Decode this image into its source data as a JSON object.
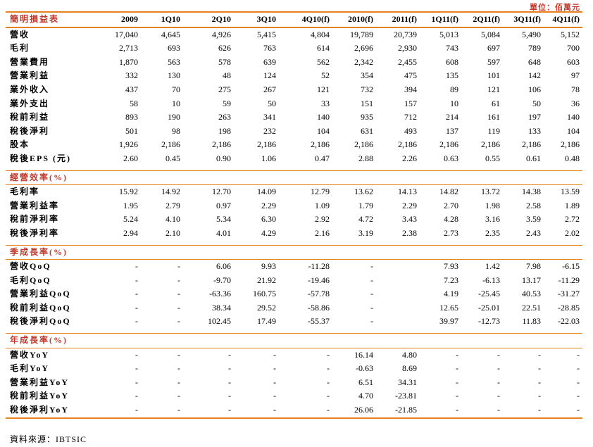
{
  "unit_note": "單位：佰萬元",
  "header": {
    "title": "簡明損益表",
    "periods": [
      "2009",
      "1Q10",
      "2Q10",
      "3Q10",
      "4Q10(f)",
      "2010(f)",
      "2011(f)",
      "1Q11(f)",
      "2Q11(f)",
      "3Q11(f)",
      "4Q11(f)"
    ]
  },
  "sections": [
    {
      "title": null,
      "rows": [
        {
          "label": "營收",
          "values": [
            "17,040",
            "4,645",
            "4,926",
            "5,415",
            "4,804",
            "19,789",
            "20,739",
            "5,013",
            "5,084",
            "5,490",
            "5,152"
          ]
        },
        {
          "label": "毛利",
          "values": [
            "2,713",
            "693",
            "626",
            "763",
            "614",
            "2,696",
            "2,930",
            "743",
            "697",
            "789",
            "700"
          ]
        },
        {
          "label": "營業費用",
          "values": [
            "1,870",
            "563",
            "578",
            "639",
            "562",
            "2,342",
            "2,455",
            "608",
            "597",
            "648",
            "603"
          ]
        },
        {
          "label": "營業利益",
          "values": [
            "332",
            "130",
            "48",
            "124",
            "52",
            "354",
            "475",
            "135",
            "101",
            "142",
            "97"
          ]
        },
        {
          "label": "業外收入",
          "values": [
            "437",
            "70",
            "275",
            "267",
            "121",
            "732",
            "394",
            "89",
            "121",
            "106",
            "78"
          ]
        },
        {
          "label": "業外支出",
          "values": [
            "58",
            "10",
            "59",
            "50",
            "33",
            "151",
            "157",
            "10",
            "61",
            "50",
            "36"
          ]
        },
        {
          "label": "稅前利益",
          "values": [
            "893",
            "190",
            "263",
            "341",
            "140",
            "935",
            "712",
            "214",
            "161",
            "197",
            "140"
          ]
        },
        {
          "label": "稅後淨利",
          "values": [
            "501",
            "98",
            "198",
            "232",
            "104",
            "631",
            "493",
            "137",
            "119",
            "133",
            "104"
          ]
        },
        {
          "label": "股本",
          "values": [
            "1,926",
            "2,186",
            "2,186",
            "2,186",
            "2,186",
            "2,186",
            "2,186",
            "2,186",
            "2,186",
            "2,186",
            "2,186"
          ]
        },
        {
          "label": "稅後EPS (元)",
          "values": [
            "2.60",
            "0.45",
            "0.90",
            "1.06",
            "0.47",
            "2.88",
            "2.26",
            "0.63",
            "0.55",
            "0.61",
            "0.48"
          ]
        }
      ]
    },
    {
      "title": "經營效率(%)",
      "rows": [
        {
          "label": "毛利率",
          "values": [
            "15.92",
            "14.92",
            "12.70",
            "14.09",
            "12.79",
            "13.62",
            "14.13",
            "14.82",
            "13.72",
            "14.38",
            "13.59"
          ]
        },
        {
          "label": "營業利益率",
          "values": [
            "1.95",
            "2.79",
            "0.97",
            "2.29",
            "1.09",
            "1.79",
            "2.29",
            "2.70",
            "1.98",
            "2.58",
            "1.89"
          ]
        },
        {
          "label": "稅前淨利率",
          "values": [
            "5.24",
            "4.10",
            "5.34",
            "6.30",
            "2.92",
            "4.72",
            "3.43",
            "4.28",
            "3.16",
            "3.59",
            "2.72"
          ]
        },
        {
          "label": "稅後淨利率",
          "values": [
            "2.94",
            "2.10",
            "4.01",
            "4.29",
            "2.16",
            "3.19",
            "2.38",
            "2.73",
            "2.35",
            "2.43",
            "2.02"
          ]
        }
      ]
    },
    {
      "title": "季成長率(%)",
      "rows": [
        {
          "label": "營收QoQ",
          "values": [
            "-",
            "-",
            "6.06",
            "9.93",
            "-11.28",
            "-",
            "",
            "7.93",
            "1.42",
            "7.98",
            "-6.15"
          ]
        },
        {
          "label": "毛利QoQ",
          "values": [
            "-",
            "-",
            "-9.70",
            "21.92",
            "-19.46",
            "-",
            "",
            "7.23",
            "-6.13",
            "13.17",
            "-11.29"
          ]
        },
        {
          "label": "營業利益QoQ",
          "values": [
            "-",
            "-",
            "-63.36",
            "160.75",
            "-57.78",
            "-",
            "",
            "4.19",
            "-25.45",
            "40.53",
            "-31.27"
          ]
        },
        {
          "label": "稅前利益QoQ",
          "values": [
            "-",
            "-",
            "38.34",
            "29.52",
            "-58.86",
            "-",
            "",
            "12.65",
            "-25.01",
            "22.51",
            "-28.85"
          ]
        },
        {
          "label": "稅後淨利QoQ",
          "values": [
            "-",
            "-",
            "102.45",
            "17.49",
            "-55.37",
            "-",
            "",
            "39.97",
            "-12.73",
            "11.83",
            "-22.03"
          ]
        }
      ]
    },
    {
      "title": "年成長率(%)",
      "rows": [
        {
          "label": "營收YoY",
          "values": [
            "-",
            "-",
            "-",
            "-",
            "-",
            "16.14",
            "4.80",
            "-",
            "-",
            "-",
            "-"
          ]
        },
        {
          "label": "毛利YoY",
          "values": [
            "-",
            "-",
            "-",
            "-",
            "-",
            "-0.63",
            "8.69",
            "-",
            "-",
            "-",
            "-"
          ]
        },
        {
          "label": "營業利益YoY",
          "values": [
            "-",
            "-",
            "-",
            "-",
            "-",
            "6.51",
            "34.31",
            "-",
            "-",
            "-",
            "-"
          ]
        },
        {
          "label": "稅前利益YoY",
          "values": [
            "-",
            "-",
            "-",
            "-",
            "-",
            "4.70",
            "-23.81",
            "-",
            "-",
            "-",
            "-"
          ]
        },
        {
          "label": "稅後淨利YoY",
          "values": [
            "-",
            "-",
            "-",
            "-",
            "-",
            "26.06",
            "-21.85",
            "-",
            "-",
            "-",
            "-"
          ]
        }
      ]
    }
  ],
  "source_note": "資料來源：IBTSIC"
}
